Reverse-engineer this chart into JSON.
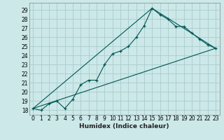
{
  "xlabel": "Humidex (Indice chaleur)",
  "bg_color": "#cce8e8",
  "grid_color": "#aacccc",
  "line_color": "#005555",
  "xlim": [
    -0.5,
    23.5
  ],
  "ylim": [
    17.5,
    29.8
  ],
  "xticks": [
    0,
    1,
    2,
    3,
    4,
    5,
    6,
    7,
    8,
    9,
    10,
    11,
    12,
    13,
    14,
    15,
    16,
    17,
    18,
    19,
    20,
    21,
    22,
    23
  ],
  "yticks": [
    18,
    19,
    20,
    21,
    22,
    23,
    24,
    25,
    26,
    27,
    28,
    29
  ],
  "series1_x": [
    0,
    1,
    2,
    3,
    4,
    5,
    6,
    7,
    8,
    9,
    10,
    11,
    12,
    13,
    14,
    15,
    16,
    17,
    18,
    19,
    20,
    21,
    22,
    23
  ],
  "series1_y": [
    18.2,
    18.0,
    18.7,
    19.0,
    18.2,
    19.2,
    20.8,
    21.3,
    21.3,
    23.0,
    24.2,
    24.5,
    25.0,
    26.0,
    27.3,
    29.2,
    28.5,
    28.0,
    27.2,
    27.2,
    26.5,
    25.8,
    25.2,
    24.8
  ],
  "series2_x": [
    0,
    23
  ],
  "series2_y": [
    18.2,
    24.8
  ],
  "series3_x": [
    0,
    15,
    23
  ],
  "series3_y": [
    18.2,
    29.2,
    24.8
  ],
  "tick_fontsize": 5.5,
  "xlabel_fontsize": 6.5
}
